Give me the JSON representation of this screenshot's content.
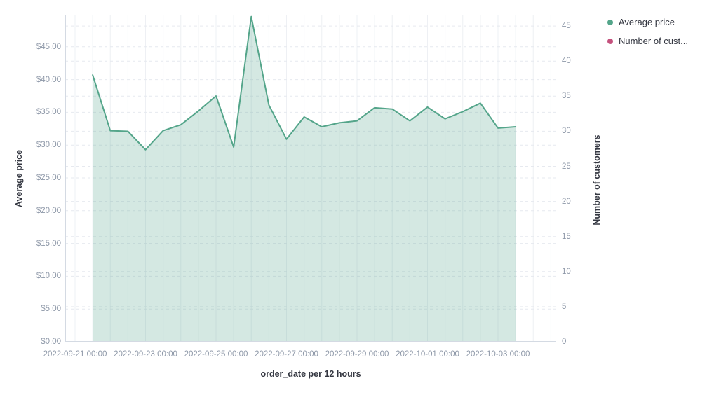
{
  "chart_data": {
    "type": "area",
    "title": "",
    "xlabel": "order_date per 12 hours",
    "x": [
      "2022-09-21 12:00",
      "2022-09-22 00:00",
      "2022-09-22 12:00",
      "2022-09-23 00:00",
      "2022-09-23 12:00",
      "2022-09-24 00:00",
      "2022-09-24 12:00",
      "2022-09-25 00:00",
      "2022-09-25 12:00",
      "2022-09-26 00:00",
      "2022-09-26 12:00",
      "2022-09-27 00:00",
      "2022-09-27 12:00",
      "2022-09-28 00:00",
      "2022-09-28 12:00",
      "2022-09-29 00:00",
      "2022-09-29 12:00",
      "2022-09-30 00:00",
      "2022-09-30 12:00",
      "2022-10-01 00:00",
      "2022-10-01 12:00",
      "2022-10-02 00:00",
      "2022-10-02 12:00",
      "2022-10-03 00:00",
      "2022-10-03 12:00"
    ],
    "series": [
      {
        "name": "Average price",
        "axis": "left",
        "color": "#54a58a",
        "fill": "rgba(84,165,138,0.25)",
        "values": [
          40.7,
          32.2,
          32.1,
          29.3,
          32.2,
          33.1,
          35.2,
          37.5,
          29.7,
          49.6,
          36.1,
          30.9,
          34.3,
          32.8,
          33.4,
          33.7,
          35.7,
          35.5,
          33.7,
          35.8,
          34.0,
          35.1,
          36.4,
          32.6,
          32.8
        ]
      },
      {
        "name": "Number of customers",
        "axis": "right",
        "color": "#c4517d",
        "values": []
      }
    ],
    "y_left": {
      "label": "Average price",
      "lim": [
        0,
        49.8
      ],
      "ticks": [
        {
          "v": 0,
          "label": "$0.00"
        },
        {
          "v": 5,
          "label": "$5.00"
        },
        {
          "v": 10,
          "label": "$10.00"
        },
        {
          "v": 15,
          "label": "$15.00"
        },
        {
          "v": 20,
          "label": "$20.00"
        },
        {
          "v": 25,
          "label": "$25.00"
        },
        {
          "v": 30,
          "label": "$30.00"
        },
        {
          "v": 35,
          "label": "$35.00"
        },
        {
          "v": 40,
          "label": "$40.00"
        },
        {
          "v": 45,
          "label": "$45.00"
        }
      ]
    },
    "y_right": {
      "label": "Number of customers",
      "lim": [
        0,
        46.5
      ],
      "ticks": [
        {
          "v": 0,
          "label": "0"
        },
        {
          "v": 5,
          "label": "5"
        },
        {
          "v": 10,
          "label": "10"
        },
        {
          "v": 15,
          "label": "15"
        },
        {
          "v": 20,
          "label": "20"
        },
        {
          "v": 25,
          "label": "25"
        },
        {
          "v": 30,
          "label": "30"
        },
        {
          "v": 35,
          "label": "35"
        },
        {
          "v": 40,
          "label": "40"
        },
        {
          "v": 45,
          "label": "45"
        }
      ]
    },
    "x_ticks": [
      {
        "pos": 0,
        "label": "2022-09-21 00:00"
      },
      {
        "pos": 4,
        "label": "2022-09-23 00:00"
      },
      {
        "pos": 8,
        "label": "2022-09-25 00:00"
      },
      {
        "pos": 12,
        "label": "2022-09-27 00:00"
      },
      {
        "pos": 16,
        "label": "2022-09-29 00:00"
      },
      {
        "pos": 20,
        "label": "2022-10-01 00:00"
      },
      {
        "pos": 24,
        "label": "2022-10-03 00:00"
      }
    ],
    "grid": true,
    "legend_position": "top-right"
  },
  "legend": {
    "items": [
      {
        "label": "Average price",
        "color": "#54a58a"
      },
      {
        "label": "Number of cust...",
        "color": "#c4517d"
      }
    ]
  },
  "colors": {
    "series_green": "#54a58a",
    "series_green_fill": "rgba(84,165,138,0.25)",
    "series_pink": "#c4517d",
    "grid_vertical": "#eef0f4",
    "grid_dashed": "#e6e9ef",
    "axis_line": "#d4dae3",
    "tick_text": "#8e98a8",
    "title_text": "#343741"
  }
}
